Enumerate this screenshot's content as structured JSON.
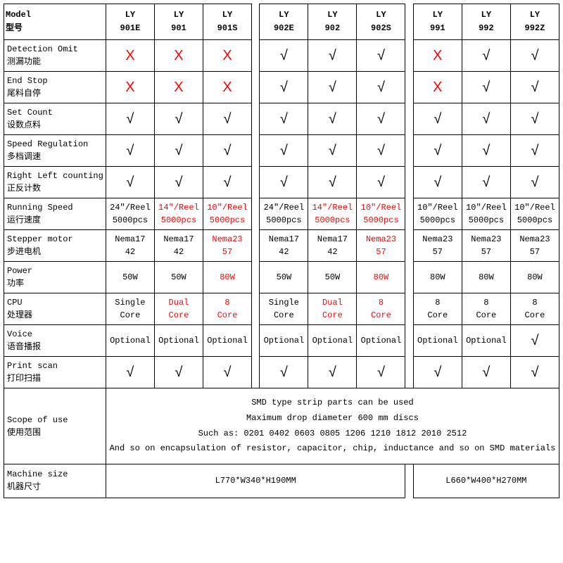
{
  "header_label_en": "Model",
  "header_label_zh": "型号",
  "models": {
    "g1": [
      "LY 901E",
      "LY 901",
      "LY 901S"
    ],
    "g2": [
      "LY 902E",
      "LY 902",
      "LY 902S"
    ],
    "g3": [
      "LY 991",
      "LY 992",
      "LY 992Z"
    ]
  },
  "check": "√",
  "cross": "X",
  "rows": [
    {
      "en": "Detection Omit",
      "zh": "测漏功能",
      "cells": [
        {
          "v": "X",
          "red": true
        },
        {
          "v": "X",
          "red": true
        },
        {
          "v": "X",
          "red": true
        },
        {
          "v": "√"
        },
        {
          "v": "√"
        },
        {
          "v": "√"
        },
        {
          "v": "X",
          "red": true
        },
        {
          "v": "√"
        },
        {
          "v": "√"
        }
      ]
    },
    {
      "en": "End Stop",
      "zh": "尾料自停",
      "cells": [
        {
          "v": "X",
          "red": true
        },
        {
          "v": "X",
          "red": true
        },
        {
          "v": "X",
          "red": true
        },
        {
          "v": "√"
        },
        {
          "v": "√"
        },
        {
          "v": "√"
        },
        {
          "v": "X",
          "red": true
        },
        {
          "v": "√"
        },
        {
          "v": "√"
        }
      ]
    },
    {
      "en": "Set Count",
      "zh": "设数点料",
      "cells": [
        {
          "v": "√"
        },
        {
          "v": "√"
        },
        {
          "v": "√"
        },
        {
          "v": "√"
        },
        {
          "v": "√"
        },
        {
          "v": "√"
        },
        {
          "v": "√"
        },
        {
          "v": "√"
        },
        {
          "v": "√"
        }
      ]
    },
    {
      "en": "Speed Regulation",
      "zh": "多档调速",
      "cells": [
        {
          "v": "√"
        },
        {
          "v": "√"
        },
        {
          "v": "√"
        },
        {
          "v": "√"
        },
        {
          "v": "√"
        },
        {
          "v": "√"
        },
        {
          "v": "√"
        },
        {
          "v": "√"
        },
        {
          "v": "√"
        }
      ]
    },
    {
      "en": "Right Left counting",
      "zh": "正反计数",
      "cells": [
        {
          "v": "√"
        },
        {
          "v": "√"
        },
        {
          "v": "√"
        },
        {
          "v": "√"
        },
        {
          "v": "√"
        },
        {
          "v": "√"
        },
        {
          "v": "√"
        },
        {
          "v": "√"
        },
        {
          "v": "√"
        }
      ]
    },
    {
      "en": "Running Speed",
      "zh": "运行速度",
      "twoline": true,
      "cells": [
        {
          "l1": "24″/Reel",
          "l2": "5000pcs"
        },
        {
          "l1": "14″/Reel",
          "l2": "5000pcs",
          "red": true
        },
        {
          "l1": "10″/Reel",
          "l2": "5000pcs",
          "red": true
        },
        {
          "l1": "24″/Reel",
          "l2": "5000pcs"
        },
        {
          "l1": "14″/Reel",
          "l2": "5000pcs",
          "red": true
        },
        {
          "l1": "10″/Reel",
          "l2": "5000pcs",
          "red": true
        },
        {
          "l1": "10″/Reel",
          "l2": "5000pcs"
        },
        {
          "l1": "10″/Reel",
          "l2": "5000pcs"
        },
        {
          "l1": "10″/Reel",
          "l2": "5000pcs"
        }
      ]
    },
    {
      "en": "Stepper motor",
      "zh": "步进电机",
      "twoline": true,
      "cells": [
        {
          "l1": "Nema17",
          "l2": "42"
        },
        {
          "l1": "Nema17",
          "l2": "42"
        },
        {
          "l1": "Nema23",
          "l2": "57",
          "red": true
        },
        {
          "l1": "Nema17",
          "l2": "42"
        },
        {
          "l1": "Nema17",
          "l2": "42"
        },
        {
          "l1": "Nema23",
          "l2": "57",
          "red": true
        },
        {
          "l1": "Nema23",
          "l2": "57"
        },
        {
          "l1": "Nema23",
          "l2": "57"
        },
        {
          "l1": "Nema23",
          "l2": "57"
        }
      ]
    },
    {
      "en": "Power",
      "zh": "功率",
      "cells": [
        {
          "t": "50W"
        },
        {
          "t": "50W"
        },
        {
          "t": "80W",
          "red": true
        },
        {
          "t": "50W"
        },
        {
          "t": "50W"
        },
        {
          "t": "80W",
          "red": true
        },
        {
          "t": "80W"
        },
        {
          "t": "80W"
        },
        {
          "t": "80W"
        }
      ]
    },
    {
      "en": "CPU",
      "zh": "处理器",
      "twoline": true,
      "cells": [
        {
          "l1": "Single",
          "l2": "Core"
        },
        {
          "l1": "Dual",
          "l2": "Core",
          "red": true
        },
        {
          "l1": "8",
          "l2": "Core",
          "red": true
        },
        {
          "l1": "Single",
          "l2": "Core"
        },
        {
          "l1": "Dual",
          "l2": "Core",
          "red": true
        },
        {
          "l1": "8",
          "l2": "Core",
          "red": true
        },
        {
          "l1": "8",
          "l2": "Core"
        },
        {
          "l1": "8",
          "l2": "Core"
        },
        {
          "l1": "8",
          "l2": "Core"
        }
      ]
    },
    {
      "en": "Voice",
      "zh": "语音播报",
      "cells": [
        {
          "t": "Optional"
        },
        {
          "t": "Optional"
        },
        {
          "t": "Optional"
        },
        {
          "t": "Optional"
        },
        {
          "t": "Optional"
        },
        {
          "t": "Optional"
        },
        {
          "t": "Optional"
        },
        {
          "t": "Optional"
        },
        {
          "v": "√"
        }
      ]
    },
    {
      "en": "Print scan",
      "zh": "打印扫描",
      "cells": [
        {
          "v": "√"
        },
        {
          "v": "√"
        },
        {
          "v": "√"
        },
        {
          "v": "√"
        },
        {
          "v": "√"
        },
        {
          "v": "√"
        },
        {
          "v": "√"
        },
        {
          "v": "√"
        },
        {
          "v": "√"
        }
      ]
    }
  ],
  "scope_label_en": "Scope of use",
  "scope_label_zh": "使用范围",
  "scope_l1": "SMD type strip parts can be used",
  "scope_l2": "Maximum drop diameter 600 mm discs",
  "scope_l3": "Such as: 0201 0402 0603 0805 1206  1210  1812  2010  2512",
  "scope_l4": "And so on encapsulation of resistor, capacitor, chip, inductance and so on SMD materials",
  "size_label_en": "Machine size",
  "size_label_zh": "机器尺寸",
  "size_g12": "L770*W340*H190MM",
  "size_g3": "L660*W400*H270MM"
}
